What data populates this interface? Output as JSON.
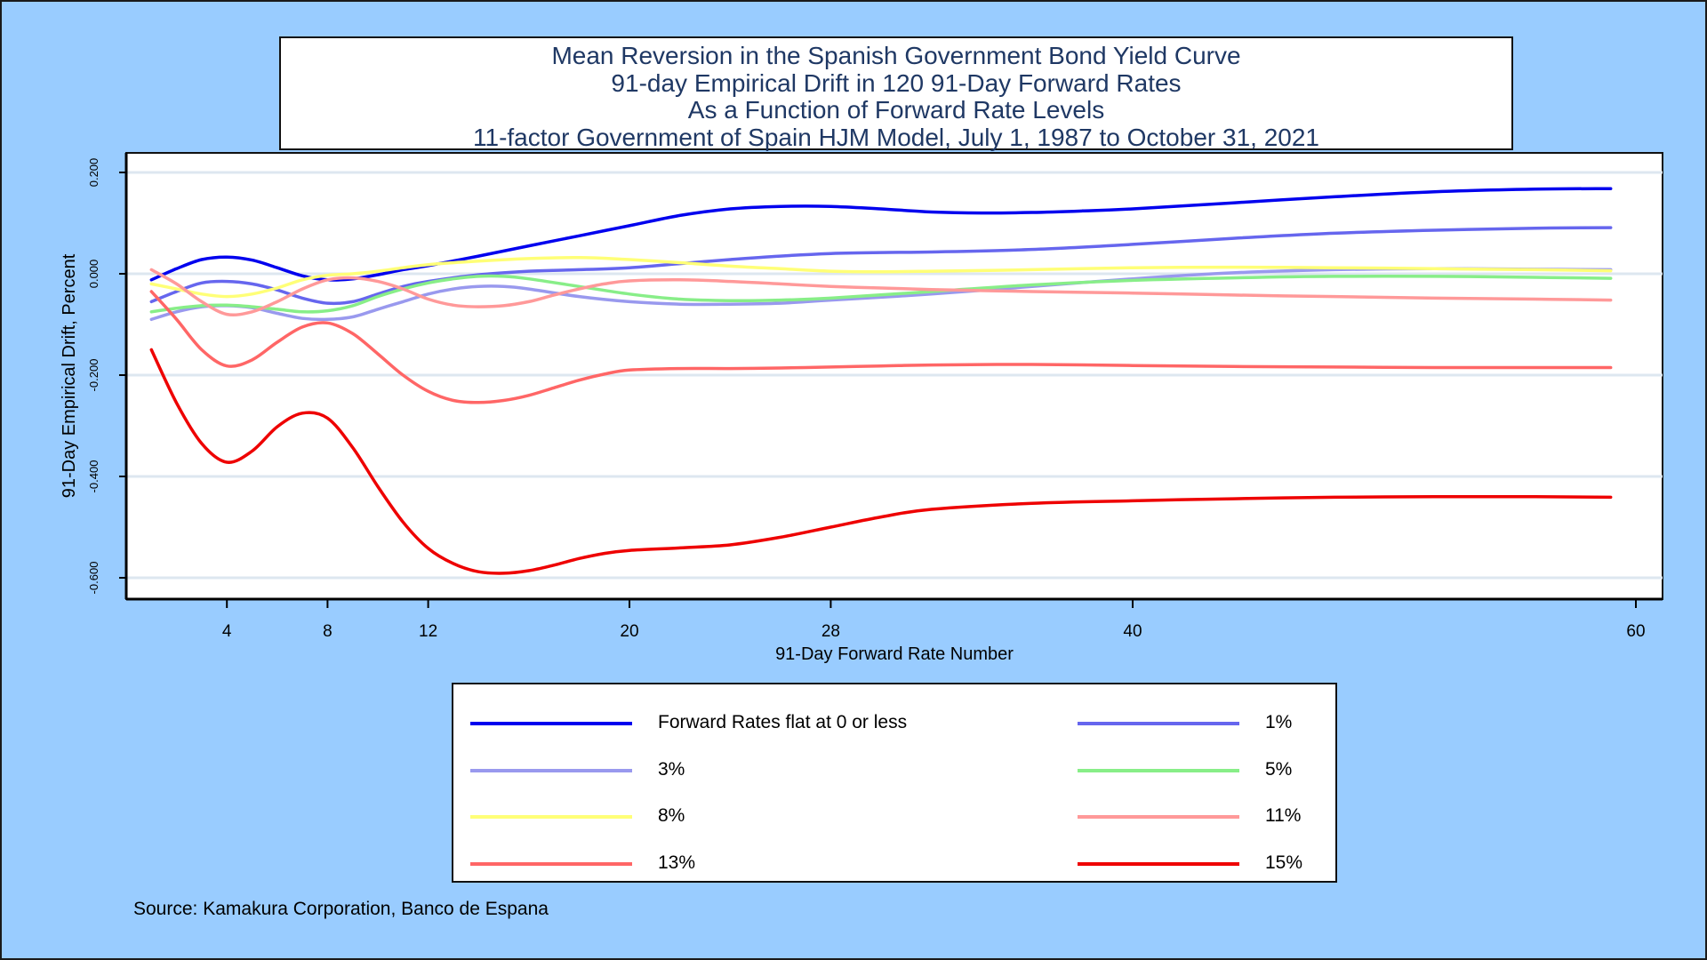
{
  "chart_data": {
    "type": "line",
    "title": [
      "Mean Reversion in the Spanish Government Bond Yield Curve",
      "91-day Empirical Drift in 120 91-Day Forward Rates",
      "As a Function of Forward Rate Levels",
      "11-factor Government of Spain HJM Model, July 1, 1987 to October 31, 2021"
    ],
    "xlabel": "91-Day Forward Rate Number",
    "ylabel": "91-Day Empirical Drift, Percent",
    "xlim": [
      0,
      60
    ],
    "ylim": [
      -0.64,
      0.24
    ],
    "xticks": [
      4,
      8,
      12,
      20,
      28,
      40,
      60
    ],
    "xtick_labels": [
      "4",
      "8",
      "12",
      "20",
      "28",
      "40",
      "60"
    ],
    "yticks": [
      0.2,
      0.0,
      -0.2,
      -0.4,
      -0.6
    ],
    "ytick_labels": [
      "0.200",
      "0.000",
      "-0.200",
      "-0.400",
      "-0.600"
    ],
    "grid": "horizontal",
    "legend_position": "bottom",
    "source": "Source: Kamakura Corporation, Banco de Espana",
    "series": [
      {
        "name": "Forward Rates flat at 0 or less",
        "color": "#0000ee",
        "x": [
          1,
          2,
          3,
          4,
          5,
          6,
          7,
          8,
          9,
          10,
          11,
          12,
          14,
          16,
          18,
          20,
          22,
          24,
          26,
          28,
          30,
          32,
          34,
          36,
          38,
          40,
          44,
          48,
          52,
          56,
          59
        ],
        "y": [
          -0.012,
          0.01,
          0.028,
          0.033,
          0.027,
          0.012,
          -0.004,
          -0.012,
          -0.01,
          -0.002,
          0.008,
          0.016,
          0.035,
          0.055,
          0.075,
          0.095,
          0.115,
          0.128,
          0.133,
          0.133,
          0.128,
          0.122,
          0.12,
          0.121,
          0.124,
          0.128,
          0.14,
          0.152,
          0.162,
          0.167,
          0.168
        ]
      },
      {
        "name": "1%",
        "color": "#6666ee",
        "x": [
          1,
          2,
          3,
          4,
          5,
          6,
          7,
          8,
          9,
          10,
          11,
          12,
          14,
          16,
          18,
          20,
          22,
          24,
          26,
          28,
          30,
          32,
          36,
          40,
          44,
          48,
          52,
          56,
          59
        ],
        "y": [
          -0.055,
          -0.035,
          -0.018,
          -0.015,
          -0.02,
          -0.032,
          -0.048,
          -0.058,
          -0.055,
          -0.04,
          -0.025,
          -0.015,
          -0.002,
          0.005,
          0.008,
          0.012,
          0.02,
          0.028,
          0.035,
          0.04,
          0.042,
          0.043,
          0.048,
          0.058,
          0.07,
          0.08,
          0.086,
          0.09,
          0.091
        ]
      },
      {
        "name": "3%",
        "color": "#9999ee",
        "x": [
          1,
          2,
          3,
          4,
          5,
          6,
          7,
          8,
          9,
          10,
          11,
          12,
          13,
          14,
          15,
          16,
          18,
          20,
          22,
          24,
          26,
          28,
          32,
          36,
          40,
          44,
          48,
          52,
          56,
          59
        ],
        "y": [
          -0.09,
          -0.075,
          -0.065,
          -0.063,
          -0.067,
          -0.078,
          -0.088,
          -0.09,
          -0.085,
          -0.07,
          -0.055,
          -0.04,
          -0.03,
          -0.025,
          -0.025,
          -0.03,
          -0.045,
          -0.055,
          -0.06,
          -0.06,
          -0.058,
          -0.052,
          -0.04,
          -0.025,
          -0.01,
          0.002,
          0.008,
          0.01,
          0.009,
          0.008
        ]
      },
      {
        "name": "5%",
        "color": "#88ee88",
        "x": [
          1,
          2,
          3,
          4,
          5,
          6,
          7,
          8,
          9,
          10,
          11,
          12,
          13,
          14,
          15,
          16,
          18,
          20,
          22,
          24,
          26,
          28,
          32,
          36,
          40,
          44,
          48,
          52,
          56,
          59
        ],
        "y": [
          -0.075,
          -0.068,
          -0.063,
          -0.062,
          -0.065,
          -0.07,
          -0.075,
          -0.073,
          -0.063,
          -0.045,
          -0.03,
          -0.018,
          -0.01,
          -0.005,
          -0.005,
          -0.01,
          -0.025,
          -0.04,
          -0.05,
          -0.053,
          -0.052,
          -0.048,
          -0.035,
          -0.022,
          -0.013,
          -0.008,
          -0.005,
          -0.005,
          -0.007,
          -0.009
        ]
      },
      {
        "name": "8%",
        "color": "#ffff77",
        "x": [
          1,
          2,
          3,
          4,
          5,
          6,
          7,
          8,
          9,
          10,
          11,
          12,
          14,
          16,
          18,
          20,
          22,
          24,
          26,
          28,
          30,
          32,
          36,
          40,
          44,
          48,
          52,
          56,
          59
        ],
        "y": [
          -0.02,
          -0.03,
          -0.04,
          -0.045,
          -0.04,
          -0.028,
          -0.012,
          -0.003,
          0.0,
          0.005,
          0.012,
          0.018,
          0.025,
          0.03,
          0.032,
          0.028,
          0.022,
          0.015,
          0.01,
          0.005,
          0.004,
          0.005,
          0.008,
          0.012,
          0.013,
          0.012,
          0.01,
          0.008,
          0.006
        ]
      },
      {
        "name": "11%",
        "color": "#ff9999",
        "x": [
          1,
          2,
          3,
          4,
          5,
          6,
          7,
          8,
          9,
          10,
          11,
          12,
          13,
          14,
          15,
          16,
          17,
          18,
          19,
          20,
          22,
          24,
          26,
          28,
          30,
          32,
          36,
          40,
          44,
          48,
          52,
          56,
          59
        ],
        "y": [
          0.008,
          -0.02,
          -0.055,
          -0.08,
          -0.075,
          -0.055,
          -0.03,
          -0.012,
          -0.008,
          -0.015,
          -0.03,
          -0.05,
          -0.062,
          -0.065,
          -0.063,
          -0.055,
          -0.042,
          -0.03,
          -0.02,
          -0.014,
          -0.012,
          -0.015,
          -0.02,
          -0.025,
          -0.028,
          -0.031,
          -0.035,
          -0.038,
          -0.042,
          -0.045,
          -0.048,
          -0.05,
          -0.052
        ]
      },
      {
        "name": "13%",
        "color": "#ff6666",
        "x": [
          1,
          2,
          3,
          4,
          5,
          6,
          7,
          8,
          9,
          10,
          11,
          12,
          13,
          14,
          15,
          16,
          17,
          18,
          19,
          20,
          22,
          24,
          26,
          28,
          30,
          32,
          36,
          40,
          44,
          48,
          52,
          56,
          59
        ],
        "y": [
          -0.035,
          -0.09,
          -0.15,
          -0.182,
          -0.17,
          -0.135,
          -0.105,
          -0.097,
          -0.118,
          -0.158,
          -0.2,
          -0.232,
          -0.25,
          -0.254,
          -0.25,
          -0.24,
          -0.225,
          -0.21,
          -0.198,
          -0.19,
          -0.187,
          -0.187,
          -0.186,
          -0.184,
          -0.182,
          -0.18,
          -0.179,
          -0.181,
          -0.183,
          -0.184,
          -0.185,
          -0.185,
          -0.185
        ]
      },
      {
        "name": "15%",
        "color": "#ee0000",
        "x": [
          1,
          2,
          3,
          4,
          5,
          6,
          7,
          8,
          9,
          10,
          11,
          12,
          13,
          14,
          15,
          16,
          17,
          18,
          19,
          20,
          22,
          24,
          26,
          28,
          30,
          32,
          36,
          40,
          44,
          48,
          52,
          56,
          59
        ],
        "y": [
          -0.15,
          -0.255,
          -0.335,
          -0.372,
          -0.35,
          -0.302,
          -0.275,
          -0.285,
          -0.343,
          -0.42,
          -0.49,
          -0.542,
          -0.572,
          -0.588,
          -0.591,
          -0.586,
          -0.575,
          -0.562,
          -0.552,
          -0.546,
          -0.541,
          -0.535,
          -0.52,
          -0.5,
          -0.48,
          -0.465,
          -0.453,
          -0.448,
          -0.444,
          -0.441,
          -0.44,
          -0.44,
          -0.441
        ]
      }
    ]
  }
}
